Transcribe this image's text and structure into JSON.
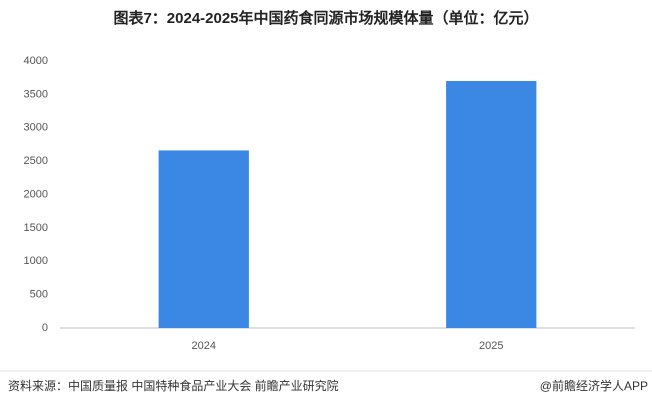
{
  "chart_data": {
    "type": "bar",
    "title": "图表7：2024-2025年中国药食同源市场规模体量（单位：亿元）",
    "categories": [
      "2024",
      "2025"
    ],
    "values": [
      2660,
      3700
    ],
    "color": "#3a87e4",
    "ylim": [
      0,
      4000
    ],
    "yticks": [
      0,
      500,
      1000,
      1500,
      2000,
      2500,
      3000,
      3500,
      4000
    ],
    "grid": false
  },
  "footer": {
    "source": "资料来源：中国质量报 中国特种食品产业大会  前瞻产业研究院",
    "credit": "@前瞻经济学人APP"
  }
}
